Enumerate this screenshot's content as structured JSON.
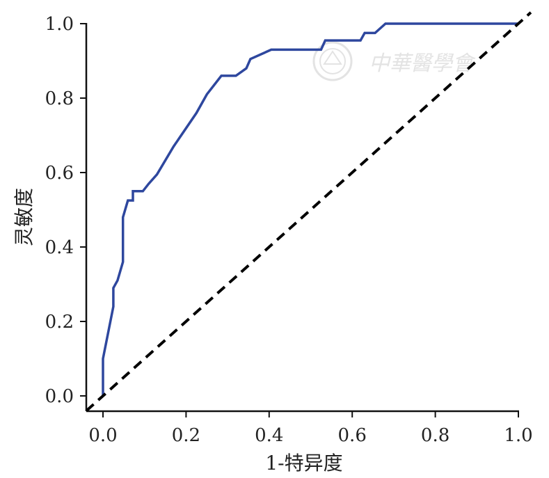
{
  "chart_data": {
    "type": "line",
    "xlabel": "1-特异度",
    "ylabel": "灵敏度",
    "xlim": [
      0.0,
      1.0
    ],
    "ylim": [
      0.0,
      1.0
    ],
    "xticks": [
      "0.0",
      "0.2",
      "0.4",
      "0.6",
      "0.8",
      "1.0"
    ],
    "yticks": [
      "0.0",
      "0.2",
      "0.4",
      "0.6",
      "0.8",
      "1.0"
    ],
    "grid": false,
    "legend": "none",
    "series": [
      {
        "color": "#2e479e",
        "style": "solid",
        "points": [
          [
            0.0,
            0.0
          ],
          [
            0.0,
            0.1
          ],
          [
            0.025,
            0.24
          ],
          [
            0.025,
            0.29
          ],
          [
            0.035,
            0.31
          ],
          [
            0.048,
            0.36
          ],
          [
            0.048,
            0.48
          ],
          [
            0.06,
            0.525
          ],
          [
            0.072,
            0.525
          ],
          [
            0.072,
            0.55
          ],
          [
            0.096,
            0.55
          ],
          [
            0.11,
            0.57
          ],
          [
            0.13,
            0.595
          ],
          [
            0.17,
            0.67
          ],
          [
            0.225,
            0.76
          ],
          [
            0.25,
            0.81
          ],
          [
            0.285,
            0.86
          ],
          [
            0.32,
            0.86
          ],
          [
            0.345,
            0.88
          ],
          [
            0.355,
            0.905
          ],
          [
            0.405,
            0.93
          ],
          [
            0.525,
            0.93
          ],
          [
            0.535,
            0.955
          ],
          [
            0.62,
            0.955
          ],
          [
            0.63,
            0.975
          ],
          [
            0.655,
            0.975
          ],
          [
            0.68,
            1.0
          ],
          [
            1.0,
            1.0
          ]
        ]
      },
      {
        "color": "#000000",
        "style": "dashed",
        "points": [
          [
            -0.04,
            -0.04
          ],
          [
            1.03,
            1.03
          ]
        ]
      }
    ]
  },
  "watermark": {
    "text": "中華醫學會",
    "color": "#e3e3e3",
    "icon": "emblem-icon"
  }
}
